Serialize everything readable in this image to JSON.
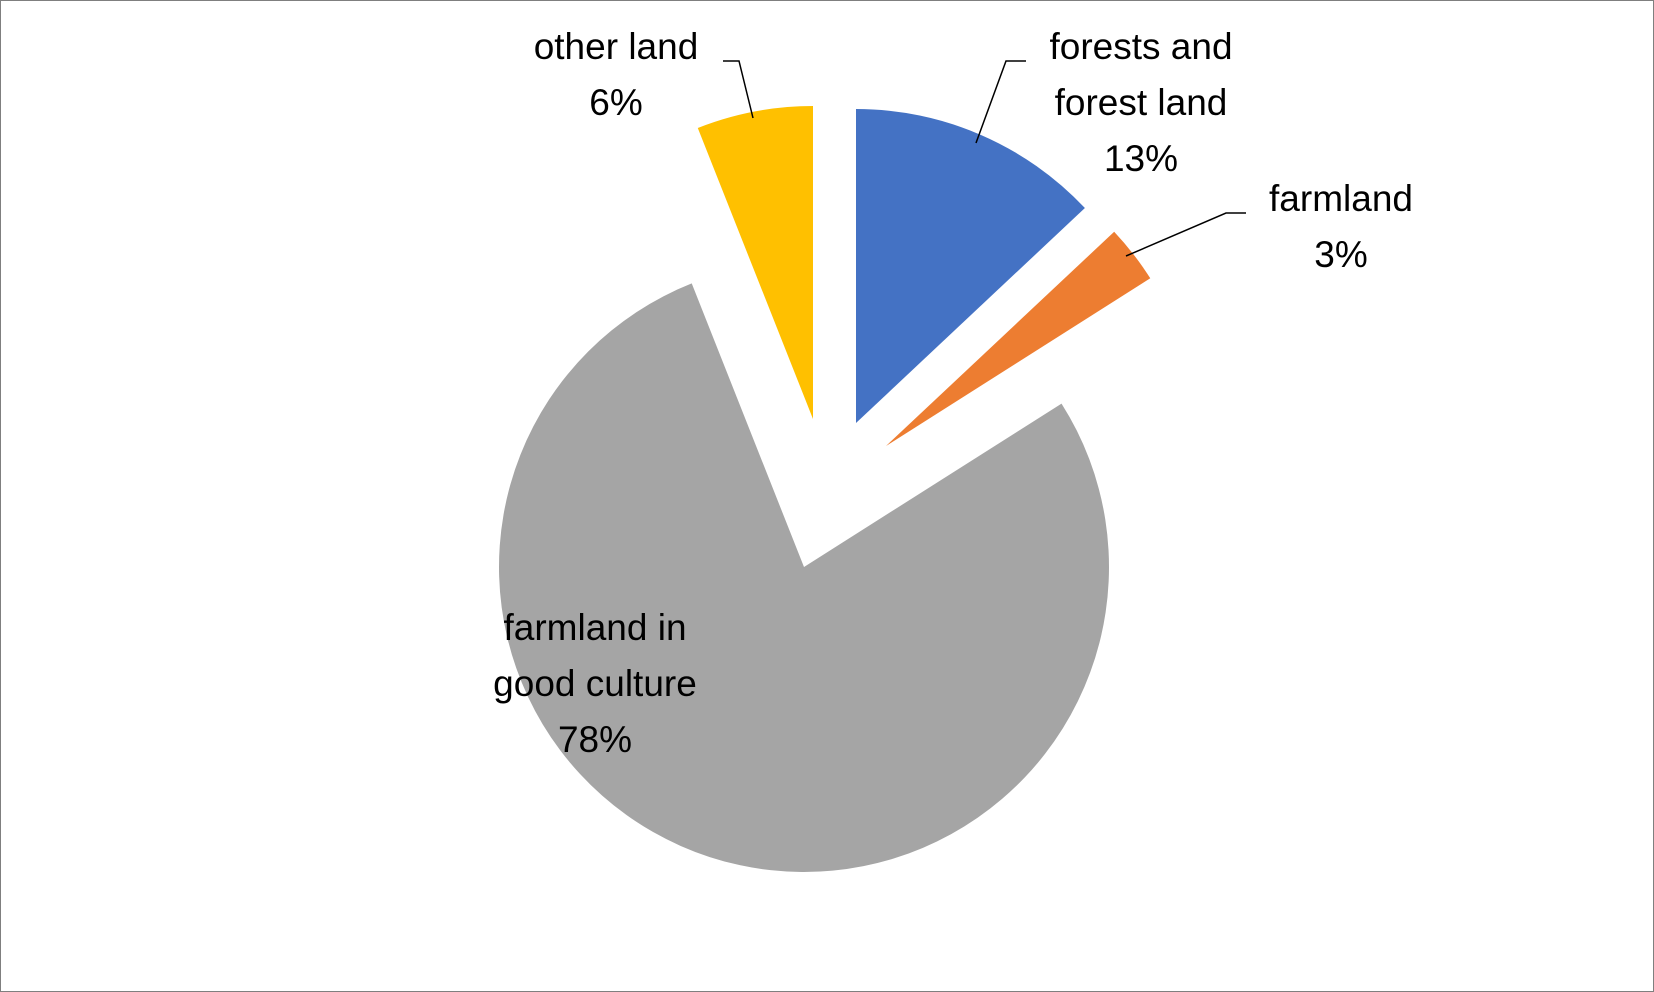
{
  "chart_data": {
    "type": "pie",
    "title": "",
    "slices": [
      {
        "label_lines": [
          "forests and",
          "forest land"
        ],
        "percent_label": "13%",
        "value": 13,
        "color": "#4472C4"
      },
      {
        "label_lines": [
          "farmland"
        ],
        "percent_label": "3%",
        "value": 3,
        "color": "#ED7D31"
      },
      {
        "label_lines": [
          "farmland in",
          "good culture"
        ],
        "percent_label": "78%",
        "value": 78,
        "color": "#A5A5A5"
      },
      {
        "label_lines": [
          "other land"
        ],
        "percent_label": "6%",
        "value": 6,
        "color": "#FFC000"
      }
    ],
    "exploded": true,
    "legend": "none",
    "data_labels": "outside-with-leader-lines"
  }
}
